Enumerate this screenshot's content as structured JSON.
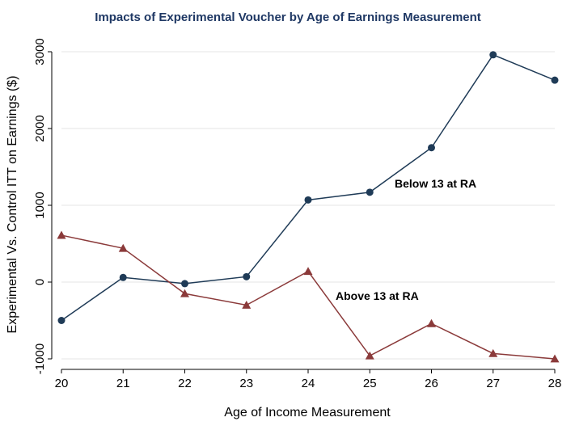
{
  "chart_data": {
    "type": "line",
    "title": "Impacts of Experimental Voucher by Age of Earnings Measurement",
    "xlabel": "Age of Income Measurement",
    "ylabel": "Experimental Vs. Control ITT on Earnings ($)",
    "x": [
      20,
      21,
      22,
      23,
      24,
      25,
      26,
      27,
      28
    ],
    "xlim": [
      20,
      28
    ],
    "ylim": [
      -1000,
      3000
    ],
    "xticks": [
      20,
      21,
      22,
      23,
      24,
      25,
      26,
      27,
      28
    ],
    "yticks": [
      -1000,
      0,
      1000,
      2000,
      3000
    ],
    "ytick_labels": [
      "-1000",
      "0",
      "1000",
      "2000",
      "3000"
    ],
    "grid": "horizontal",
    "series": [
      {
        "name": "Below 13 at RA",
        "marker": "circle",
        "color": "#1f3b57",
        "values": [
          -500,
          60,
          -20,
          70,
          1070,
          1170,
          1750,
          2960,
          2630
        ]
      },
      {
        "name": "Above 13 at RA",
        "marker": "triangle",
        "color": "#8b3a3a",
        "values": [
          610,
          440,
          -150,
          -300,
          140,
          -960,
          -540,
          -930,
          -1000
        ]
      }
    ]
  }
}
